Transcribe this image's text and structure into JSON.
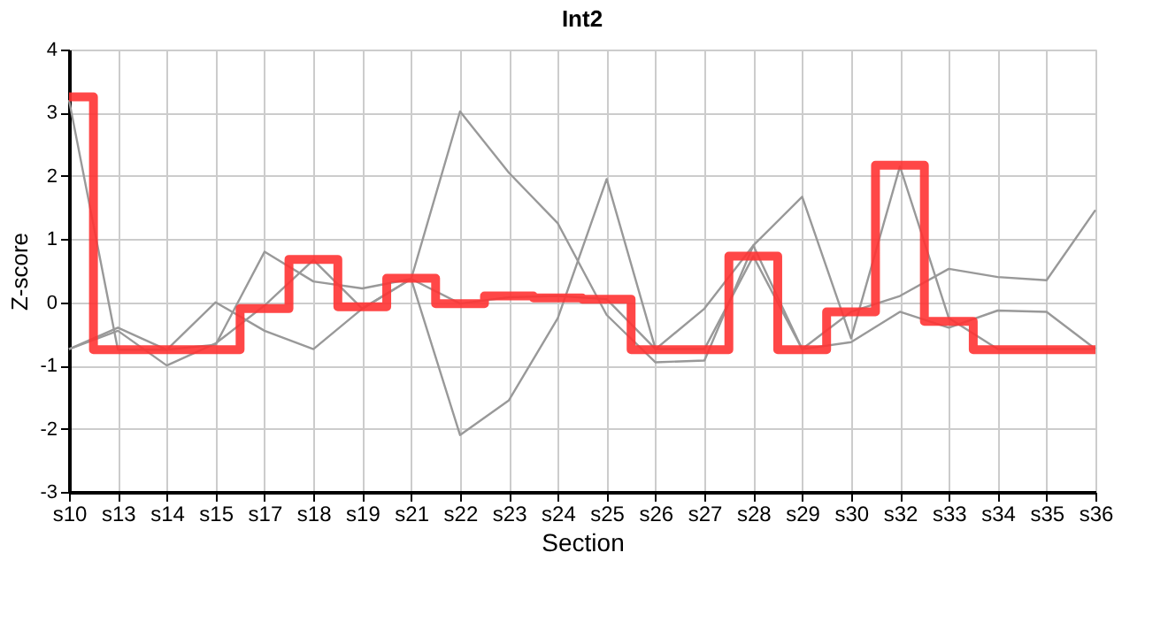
{
  "chart_data": {
    "type": "line",
    "title": "Int2",
    "xlabel": "Section",
    "ylabel": "Z-score",
    "categories": [
      "s10",
      "s13",
      "s14",
      "s15",
      "s17",
      "s18",
      "s19",
      "s21",
      "s22",
      "s23",
      "s24",
      "s25",
      "s26",
      "s27",
      "s28",
      "s29",
      "s30",
      "s32",
      "s33",
      "s34",
      "s35",
      "s36"
    ],
    "ylim": [
      -3,
      4
    ],
    "yticks": [
      -3,
      -2,
      -1,
      0,
      1,
      2,
      3,
      4
    ],
    "grid": true,
    "series": [
      {
        "type": "line",
        "color": "#999999",
        "values": [
          3.2,
          -0.75,
          -0.75,
          -0.67,
          0.8,
          0.33,
          0.22,
          0.37,
          -0.02,
          0.08,
          0.1,
          0.05,
          -0.74,
          -0.1,
          0.9,
          -0.74,
          -0.63,
          -0.15,
          -0.4,
          -0.13,
          -0.15,
          -0.74
        ]
      },
      {
        "type": "line",
        "color": "#999999",
        "values": [
          -0.74,
          -0.4,
          -0.75,
          0,
          -0.45,
          -0.74,
          -0.1,
          0.37,
          -2.1,
          -1.55,
          -0.25,
          1.95,
          -0.74,
          -0.74,
          0.73,
          -0.74,
          -0.15,
          0.1,
          0.53,
          0.4,
          0.35,
          1.46
        ]
      },
      {
        "type": "line",
        "color": "#999999",
        "values": [
          -0.74,
          -0.45,
          -1.0,
          -0.65,
          -0.05,
          0.67,
          -0.1,
          0.37,
          3.02,
          2.05,
          1.25,
          -0.2,
          -0.95,
          -0.92,
          0.9,
          1.67,
          -0.57,
          2.15,
          -0.25,
          -0.74,
          -0.74,
          -0.74
        ]
      },
      {
        "type": "step",
        "color": "#ff3333",
        "values": [
          3.25,
          -0.75,
          -0.75,
          -0.75,
          -0.1,
          0.68,
          -0.07,
          0.38,
          -0.02,
          0.1,
          0.07,
          0.05,
          -0.75,
          -0.75,
          0.73,
          -0.75,
          -0.15,
          2.17,
          -0.3,
          -0.75,
          -0.75,
          -0.75
        ]
      }
    ]
  }
}
